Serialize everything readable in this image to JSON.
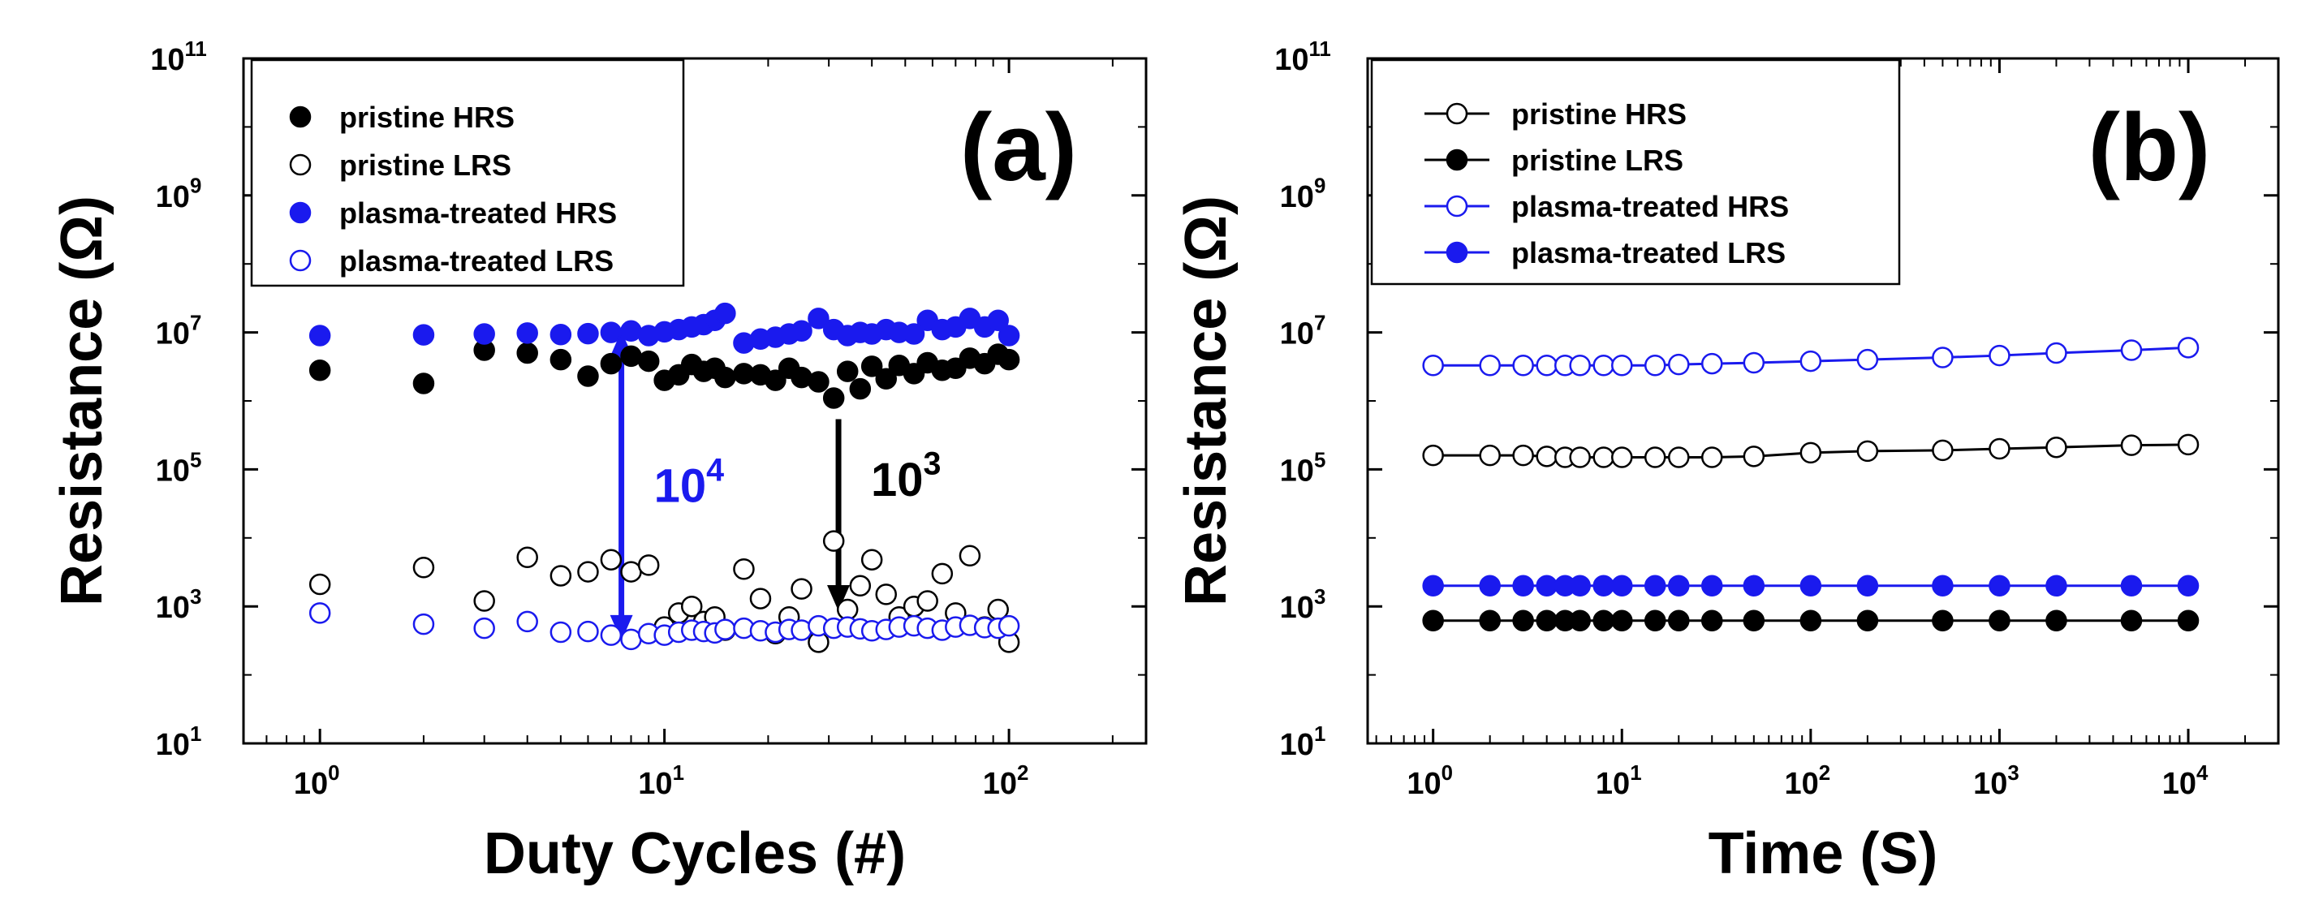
{
  "colors": {
    "black": "#000000",
    "blue": "#1a1aee"
  },
  "chart_data": [
    {
      "panel_label": "(a)",
      "type": "scatter",
      "xscale": "log",
      "yscale": "log",
      "xlabel": "Duty Cycles (#)",
      "ylabel": "Resistance (Ω)",
      "xlim": [
        0.6,
        250
      ],
      "ylim": [
        10,
        100000000000
      ],
      "xticks": [
        {
          "value": 1,
          "base": "10",
          "exp": "0"
        },
        {
          "value": 10,
          "base": "10",
          "exp": "1"
        },
        {
          "value": 100,
          "base": "10",
          "exp": "2"
        }
      ],
      "yticks": [
        {
          "value": 10,
          "base": "10",
          "exp": "1"
        },
        {
          "value": 1000,
          "base": "10",
          "exp": "3"
        },
        {
          "value": 100000,
          "base": "10",
          "exp": "5"
        },
        {
          "value": 10000000,
          "base": "10",
          "exp": "7"
        },
        {
          "value": 1000000000,
          "base": "10",
          "exp": "9"
        },
        {
          "value": 100000000000,
          "base": "10",
          "exp": "11"
        }
      ],
      "legend": "top-left",
      "series": [
        {
          "name": "pristine HRS",
          "color": "#000000",
          "marker": "filled",
          "x": [
            1,
            2,
            3,
            4,
            5,
            6,
            7,
            8,
            9,
            10,
            11,
            12,
            13,
            14,
            15,
            17,
            19,
            21,
            23,
            25,
            28,
            31,
            34,
            37,
            40,
            44,
            48,
            53,
            58,
            64,
            70,
            77,
            85,
            93,
            100
          ],
          "y": [
            2800000,
            1800000,
            5500000,
            5000000,
            4000000,
            2300000,
            3500000,
            4500000,
            3800000,
            2000000,
            2400000,
            3400000,
            2700000,
            3000000,
            2200000,
            2500000,
            2400000,
            2000000,
            3000000,
            2200000,
            1900000,
            1100000,
            2700000,
            1500000,
            3200000,
            2100000,
            3300000,
            2500000,
            3600000,
            2800000,
            3000000,
            4200000,
            3500000,
            4800000,
            4000000
          ]
        },
        {
          "name": "pristine LRS",
          "color": "#000000",
          "marker": "open",
          "x": [
            1,
            2,
            3,
            4,
            5,
            6,
            7,
            8,
            9,
            10,
            11,
            12,
            13,
            14,
            15,
            17,
            19,
            21,
            23,
            25,
            28,
            31,
            34,
            37,
            40,
            44,
            48,
            53,
            58,
            64,
            70,
            77,
            85,
            93,
            100
          ],
          "y": [
            2100,
            3700,
            1200,
            5200,
            2800,
            3200,
            4800,
            3200,
            4000,
            500,
            800,
            1000,
            600,
            700,
            450,
            3500,
            1300,
            400,
            700,
            1800,
            300,
            9000,
            900,
            2000,
            4800,
            1500,
            700,
            1000,
            1200,
            3000,
            800,
            5500,
            500,
            900,
            300
          ]
        },
        {
          "name": "plasma-treated HRS",
          "color": "#1a1aee",
          "marker": "filled",
          "x": [
            1,
            2,
            3,
            4,
            5,
            6,
            7,
            8,
            9,
            10,
            11,
            12,
            13,
            14,
            15,
            17,
            19,
            21,
            23,
            25,
            28,
            31,
            34,
            37,
            40,
            44,
            48,
            53,
            58,
            64,
            70,
            77,
            85,
            93,
            100
          ],
          "y": [
            9000000,
            9200000,
            9500000,
            9800000,
            9300000,
            9600000,
            10000000,
            10500000,
            9000000,
            10200000,
            11000000,
            12000000,
            13000000,
            15000000,
            19000000,
            7000000,
            8000000,
            8500000,
            9500000,
            10500000,
            16000000,
            11000000,
            9000000,
            10000000,
            9500000,
            11000000,
            10000000,
            9500000,
            15000000,
            11000000,
            12000000,
            16000000,
            12000000,
            15000000,
            9000000
          ]
        },
        {
          "name": "plasma-treated LRS",
          "color": "#1a1aee",
          "marker": "open",
          "x": [
            1,
            2,
            3,
            4,
            5,
            6,
            7,
            8,
            9,
            10,
            11,
            12,
            13,
            14,
            15,
            17,
            19,
            21,
            23,
            25,
            28,
            31,
            34,
            37,
            40,
            44,
            48,
            53,
            58,
            64,
            70,
            77,
            85,
            93,
            100
          ],
          "y": [
            800,
            550,
            480,
            600,
            420,
            430,
            380,
            330,
            400,
            380,
            420,
            450,
            430,
            410,
            460,
            480,
            440,
            420,
            460,
            450,
            520,
            480,
            500,
            470,
            440,
            460,
            500,
            520,
            480,
            450,
            500,
            530,
            490,
            480,
            520
          ]
        }
      ],
      "annotations": [
        {
          "label_base": "10",
          "label_exp": "4",
          "color": "#1a1aee",
          "x": 7.5,
          "y_from": 330,
          "y_to": 10000000
        },
        {
          "label_base": "10",
          "label_exp": "3",
          "color": "#000000",
          "x": 32,
          "y_from": 900,
          "y_to": 1100000
        }
      ]
    },
    {
      "panel_label": "(b)",
      "type": "line",
      "xscale": "log",
      "yscale": "log",
      "xlabel": "Time (S)",
      "ylabel": "Resistance (Ω)",
      "xlim": [
        0.45,
        30000
      ],
      "ylim": [
        10,
        100000000000
      ],
      "xticks": [
        {
          "value": 1,
          "base": "10",
          "exp": "0"
        },
        {
          "value": 10,
          "base": "10",
          "exp": "1"
        },
        {
          "value": 100,
          "base": "10",
          "exp": "2"
        },
        {
          "value": 1000,
          "base": "10",
          "exp": "3"
        },
        {
          "value": 10000,
          "base": "10",
          "exp": "4"
        }
      ],
      "yticks": [
        {
          "value": 10,
          "base": "10",
          "exp": "1"
        },
        {
          "value": 1000,
          "base": "10",
          "exp": "3"
        },
        {
          "value": 100000,
          "base": "10",
          "exp": "5"
        },
        {
          "value": 10000000,
          "base": "10",
          "exp": "7"
        },
        {
          "value": 1000000000,
          "base": "10",
          "exp": "9"
        },
        {
          "value": 100000000000,
          "base": "10",
          "exp": "11"
        }
      ],
      "legend": "top-left",
      "series": [
        {
          "name": "pristine HRS",
          "color": "#000000",
          "marker": "open",
          "x": [
            1,
            2,
            3,
            4,
            5,
            6,
            8,
            10,
            15,
            20,
            30,
            50,
            100,
            200,
            500,
            1000,
            2000,
            5000,
            10000
          ],
          "y": [
            160000,
            160000,
            160000,
            155000,
            150000,
            150000,
            150000,
            150000,
            150000,
            150000,
            150000,
            155000,
            175000,
            185000,
            190000,
            200000,
            210000,
            225000,
            230000
          ]
        },
        {
          "name": "pristine LRS",
          "color": "#000000",
          "marker": "filled",
          "x": [
            1,
            2,
            3,
            4,
            5,
            6,
            8,
            10,
            15,
            20,
            30,
            50,
            100,
            200,
            500,
            1000,
            2000,
            5000,
            10000
          ],
          "y": [
            620,
            620,
            620,
            620,
            620,
            620,
            620,
            620,
            620,
            620,
            620,
            620,
            620,
            620,
            620,
            620,
            620,
            620,
            620
          ]
        },
        {
          "name": "plasma-treated HRS",
          "color": "#1a1aee",
          "marker": "open",
          "x": [
            1,
            2,
            3,
            4,
            5,
            6,
            8,
            10,
            15,
            20,
            30,
            50,
            100,
            200,
            500,
            1000,
            2000,
            5000,
            10000
          ],
          "y": [
            3300000,
            3300000,
            3300000,
            3300000,
            3300000,
            3300000,
            3300000,
            3300000,
            3300000,
            3400000,
            3500000,
            3600000,
            3800000,
            4000000,
            4300000,
            4600000,
            5000000,
            5500000,
            6000000
          ]
        },
        {
          "name": "plasma-treated LRS",
          "color": "#1a1aee",
          "marker": "filled",
          "x": [
            1,
            2,
            3,
            4,
            5,
            6,
            8,
            10,
            15,
            20,
            30,
            50,
            100,
            200,
            500,
            1000,
            2000,
            5000,
            10000
          ],
          "y": [
            2000,
            2000,
            2000,
            2000,
            2000,
            2000,
            2000,
            2000,
            2000,
            2000,
            2000,
            2000,
            2000,
            2000,
            2000,
            2000,
            2000,
            2000,
            2000
          ]
        }
      ]
    }
  ]
}
